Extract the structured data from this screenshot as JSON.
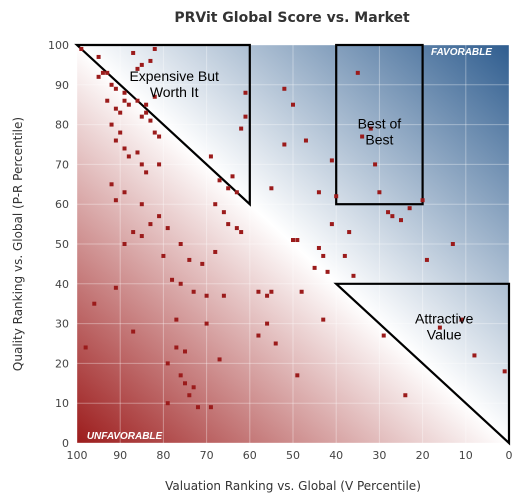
{
  "chart_data": {
    "type": "scatter",
    "title": "PRVit Global Score vs. Market",
    "xlabel": "Valuation Ranking vs. Global (V Percentile)",
    "ylabel": "Quality Ranking vs. Global (P-R Percentile)",
    "xlim": [
      100,
      0
    ],
    "ylim": [
      0,
      100
    ],
    "x_ticks": [
      "100",
      "90",
      "80",
      "70",
      "60",
      "50",
      "40",
      "30",
      "20",
      "10",
      "0"
    ],
    "y_ticks": [
      "0",
      "10",
      "20",
      "30",
      "40",
      "50",
      "60",
      "70",
      "80",
      "90",
      "100"
    ],
    "grid": true,
    "colors": {
      "favorable": "#2f5d8f",
      "unfavorable": "#9c1c1c",
      "marker": "#9b1b1b",
      "frame": "#000000"
    },
    "annotations": [
      {
        "text": "Expensive But Worth It",
        "lines": [
          "Expensive But",
          "Worth It"
        ],
        "x": 77.5,
        "y": 91
      },
      {
        "text": "Best of Best",
        "lines": [
          "Best of",
          "Best"
        ],
        "x": 30,
        "y": 79
      },
      {
        "text": "Attractive Value",
        "lines": [
          "Attractive",
          "Value"
        ],
        "x": 15,
        "y": 30
      },
      {
        "text": "FAVORABLE",
        "lines": [
          "FAVORABLE"
        ],
        "x": 11,
        "y": 97.5
      },
      {
        "text": "UNFAVORABLE",
        "lines": [
          "UNFAVORABLE"
        ],
        "x": 89,
        "y": 1
      }
    ],
    "regions": [
      {
        "name": "Expensive But Worth It",
        "shape": "triangle",
        "points": [
          [
            100,
            100
          ],
          [
            60,
            100
          ],
          [
            60,
            60
          ]
        ]
      },
      {
        "name": "Best of Best",
        "shape": "rect",
        "x": [
          20,
          40
        ],
        "y": [
          60,
          100
        ]
      },
      {
        "name": "Attractive Value",
        "shape": "triangle",
        "points": [
          [
            40,
            40
          ],
          [
            0,
            40
          ],
          [
            0,
            0
          ]
        ]
      }
    ],
    "points": [
      [
        99,
        99
      ],
      [
        95,
        97
      ],
      [
        93,
        93
      ],
      [
        95,
        92
      ],
      [
        92,
        90
      ],
      [
        91,
        89
      ],
      [
        93,
        86
      ],
      [
        91,
        84
      ],
      [
        89,
        88
      ],
      [
        89,
        86
      ],
      [
        88,
        85
      ],
      [
        90,
        83
      ],
      [
        86,
        86
      ],
      [
        84,
        85
      ],
      [
        82,
        87
      ],
      [
        84,
        83
      ],
      [
        85,
        82
      ],
      [
        83,
        81
      ],
      [
        82,
        78
      ],
      [
        81,
        77
      ],
      [
        86,
        94
      ],
      [
        85,
        95
      ],
      [
        83,
        96
      ],
      [
        87,
        98
      ],
      [
        82,
        99
      ],
      [
        92,
        80
      ],
      [
        90,
        78
      ],
      [
        91,
        76
      ],
      [
        89,
        74
      ],
      [
        88,
        72
      ],
      [
        86,
        73
      ],
      [
        85,
        70
      ],
      [
        84,
        68
      ],
      [
        81,
        70
      ],
      [
        92,
        65
      ],
      [
        91,
        61
      ],
      [
        89,
        63
      ],
      [
        85,
        60
      ],
      [
        87,
        53
      ],
      [
        85,
        52
      ],
      [
        83,
        55
      ],
      [
        81,
        57
      ],
      [
        79,
        54
      ],
      [
        80,
        47
      ],
      [
        76,
        50
      ],
      [
        74,
        46
      ],
      [
        76,
        40
      ],
      [
        73,
        38
      ],
      [
        70,
        37
      ],
      [
        66,
        37
      ],
      [
        68,
        48
      ],
      [
        71,
        45
      ],
      [
        77,
        31
      ],
      [
        77,
        24
      ],
      [
        75,
        23
      ],
      [
        76,
        17
      ],
      [
        75,
        15
      ],
      [
        74,
        12
      ],
      [
        72,
        9
      ],
      [
        70,
        30
      ],
      [
        78,
        41
      ],
      [
        89,
        50
      ],
      [
        96,
        35
      ],
      [
        98,
        24
      ],
      [
        91,
        39
      ],
      [
        87,
        28
      ],
      [
        69,
        72
      ],
      [
        67,
        66
      ],
      [
        66,
        58
      ],
      [
        68,
        60
      ],
      [
        65,
        55
      ],
      [
        64,
        67
      ],
      [
        63,
        63
      ],
      [
        62,
        79
      ],
      [
        61,
        88
      ],
      [
        61,
        82
      ],
      [
        58,
        38
      ],
      [
        56,
        37
      ],
      [
        55,
        38
      ],
      [
        56,
        30
      ],
      [
        52,
        75
      ],
      [
        52,
        89
      ],
      [
        50,
        85
      ],
      [
        49,
        51
      ],
      [
        49,
        17
      ],
      [
        48,
        38
      ],
      [
        44,
        49
      ],
      [
        43,
        31
      ],
      [
        43,
        47
      ],
      [
        42,
        43
      ],
      [
        41,
        71
      ],
      [
        40,
        62
      ],
      [
        41,
        55
      ],
      [
        38,
        47
      ],
      [
        35,
        93
      ],
      [
        34,
        77
      ],
      [
        32,
        79
      ],
      [
        31,
        70
      ],
      [
        30,
        63
      ],
      [
        28,
        58
      ],
      [
        27,
        57
      ],
      [
        25,
        56
      ],
      [
        23,
        59
      ],
      [
        20,
        61
      ],
      [
        19,
        46
      ],
      [
        16,
        29
      ],
      [
        13,
        50
      ],
      [
        11,
        31
      ],
      [
        8,
        22
      ],
      [
        1,
        18
      ],
      [
        24,
        12
      ],
      [
        58,
        27
      ],
      [
        45,
        44
      ],
      [
        79,
        20
      ],
      [
        63,
        54
      ],
      [
        55,
        64
      ],
      [
        67,
        21
      ],
      [
        73,
        14
      ],
      [
        69,
        9
      ],
      [
        79,
        10
      ],
      [
        65,
        64
      ],
      [
        54,
        25
      ],
      [
        50,
        51
      ],
      [
        37,
        53
      ],
      [
        36,
        42
      ],
      [
        29,
        27
      ],
      [
        44,
        63
      ],
      [
        47,
        76
      ],
      [
        94,
        93
      ],
      [
        62,
        53
      ]
    ]
  }
}
